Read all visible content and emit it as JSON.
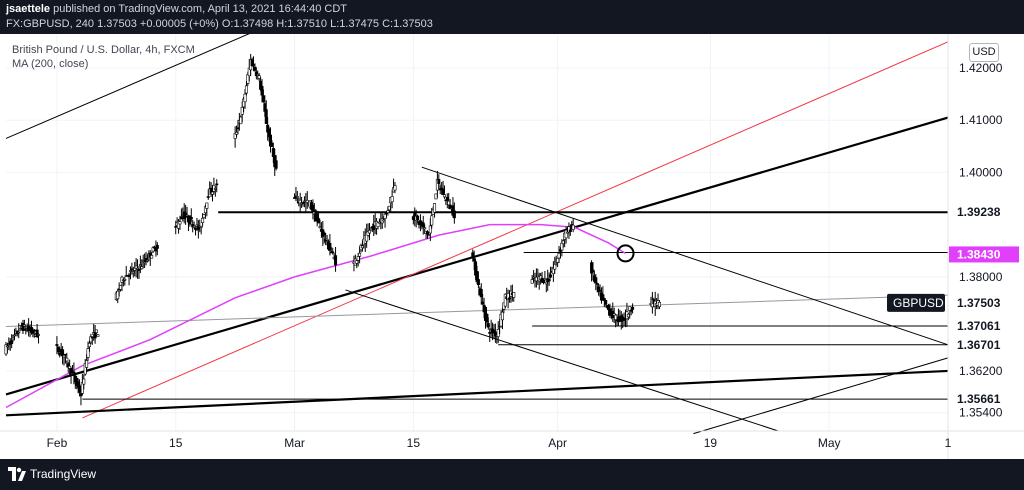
{
  "header": {
    "author": "jsaettele",
    "published": " published on TradingView.com, April 13, 2021 16:44:40 CDT",
    "ohlc_line": "FX:GBPUSD, 240  1.37503  +0.00005 (+0%)  O:1.37498  H:1.37510  L:1.37475  C:1.37503"
  },
  "legend": {
    "title": "British Pound / U.S. Dollar, 4h, FXCM",
    "indicator": "MA (200, close)"
  },
  "currency_button": "USD",
  "footer": {
    "brand": "TradingView"
  },
  "colors": {
    "bar_dark": "#131722",
    "grid": "#f0f3fa",
    "candle": "#000000",
    "ma": "#e040fb",
    "trend_red": "#f23645",
    "line_gray": "#9598a1",
    "trend_black": "#000000"
  },
  "chart_data": {
    "type": "candlestick",
    "symbol": "GBPUSD",
    "timeframe": "4h",
    "ylim": [
      1.3505,
      1.4265
    ],
    "x_ticks": [
      {
        "label": "Feb",
        "date": "2021-02-01"
      },
      {
        "label": "15",
        "date": "2021-02-15"
      },
      {
        "label": "Mar",
        "date": "2021-03-01"
      },
      {
        "label": "15",
        "date": "2021-03-15"
      },
      {
        "label": "Apr",
        "date": "2021-04-01"
      },
      {
        "label": "19",
        "date": "2021-04-19"
      },
      {
        "label": "May",
        "date": "2021-05-03"
      },
      {
        "label": "1",
        "date": "2021-05-17"
      }
    ],
    "y_ticks": [
      1.42,
      1.41,
      1.4,
      1.38,
      1.362,
      1.354
    ],
    "y_tick_labels": [
      "1.42000",
      "1.41000",
      "1.40000",
      "1.38000",
      "1.36200",
      "1.35400"
    ],
    "last_price": 1.37503,
    "price_path": [
      [
        "2021-01-26",
        1.366
      ],
      [
        "2021-01-28",
        1.3705
      ],
      [
        "2021-01-31",
        1.368
      ],
      [
        "2021-02-02",
        1.365
      ],
      [
        "2021-02-04",
        1.3575
      ],
      [
        "2021-02-05",
        1.368
      ],
      [
        "2021-02-07",
        1.371
      ],
      [
        "2021-02-09",
        1.38
      ],
      [
        "2021-02-11",
        1.382
      ],
      [
        "2021-02-13",
        1.386
      ],
      [
        "2021-02-15",
        1.389
      ],
      [
        "2021-02-16",
        1.392
      ],
      [
        "2021-02-18",
        1.389
      ],
      [
        "2021-02-19",
        1.396
      ],
      [
        "2021-02-21",
        1.399
      ],
      [
        "2021-02-22",
        1.406
      ],
      [
        "2021-02-23",
        1.412
      ],
      [
        "2021-02-24",
        1.4215
      ],
      [
        "2021-02-25",
        1.418
      ],
      [
        "2021-02-26",
        1.408
      ],
      [
        "2021-02-28",
        1.393
      ],
      [
        "2021-03-01",
        1.395
      ],
      [
        "2021-03-03",
        1.394
      ],
      [
        "2021-03-04",
        1.39
      ],
      [
        "2021-03-06",
        1.383
      ],
      [
        "2021-03-08",
        1.382
      ],
      [
        "2021-03-10",
        1.389
      ],
      [
        "2021-03-12",
        1.392
      ],
      [
        "2021-03-13",
        1.398
      ],
      [
        "2021-03-15",
        1.392
      ],
      [
        "2021-03-17",
        1.388
      ],
      [
        "2021-03-18",
        1.398
      ],
      [
        "2021-03-20",
        1.392
      ],
      [
        "2021-03-22",
        1.385
      ],
      [
        "2021-03-23",
        1.377
      ],
      [
        "2021-03-24",
        1.37
      ],
      [
        "2021-03-25",
        1.369
      ],
      [
        "2021-03-26",
        1.376
      ],
      [
        "2021-03-28",
        1.378
      ],
      [
        "2021-03-30",
        1.38
      ],
      [
        "2021-03-31",
        1.379
      ],
      [
        "2021-04-01",
        1.383
      ],
      [
        "2021-04-02",
        1.388
      ],
      [
        "2021-04-03",
        1.39
      ],
      [
        "2021-04-04",
        1.386
      ],
      [
        "2021-04-05",
        1.382
      ],
      [
        "2021-04-06",
        1.377
      ],
      [
        "2021-04-07",
        1.374
      ],
      [
        "2021-04-08",
        1.372
      ],
      [
        "2021-04-09",
        1.372
      ],
      [
        "2021-04-10",
        1.3745
      ],
      [
        "2021-04-11",
        1.3735
      ],
      [
        "2021-04-12",
        1.375
      ],
      [
        "2021-04-13",
        1.375
      ]
    ],
    "ma200": [
      [
        "2021-01-26",
        1.355
      ],
      [
        "2021-02-04",
        1.363
      ],
      [
        "2021-02-12",
        1.368
      ],
      [
        "2021-02-22",
        1.376
      ],
      [
        "2021-03-01",
        1.38
      ],
      [
        "2021-03-10",
        1.384
      ],
      [
        "2021-03-18",
        1.388
      ],
      [
        "2021-03-24",
        1.39
      ],
      [
        "2021-03-30",
        1.39
      ],
      [
        "2021-04-03",
        1.3895
      ],
      [
        "2021-04-07",
        1.3865
      ],
      [
        "2021-04-09",
        1.3845
      ]
    ],
    "horizontal_levels": [
      {
        "price": 1.39238,
        "label": "1.39238",
        "from": "2021-02-20"
      },
      {
        "price": 1.38466,
        "label": "1.38466",
        "from": "2021-03-28"
      },
      {
        "price": 1.37061,
        "label": "1.37061",
        "from": "2021-03-29"
      },
      {
        "price": 1.36701,
        "label": "1.36701",
        "from": "2021-03-25"
      },
      {
        "price": 1.35661,
        "label": "1.35661",
        "from": "2021-02-04"
      }
    ],
    "ma_label": {
      "price": 1.3843,
      "label": "1.38430"
    },
    "symbol_label": {
      "price": 1.37503,
      "label": "GBPUSD",
      "value": "1.37503"
    },
    "trendlines": [
      {
        "style": "black-thin",
        "from": [
          "2021-01-26",
          1.4065
        ],
        "to": [
          "2021-03-02",
          1.431
        ]
      },
      {
        "style": "black-thick",
        "from": [
          "2021-01-26",
          1.3575
        ],
        "to": [
          "2021-05-17",
          1.4105
        ]
      },
      {
        "style": "red",
        "from": [
          "2021-02-04",
          1.353
        ],
        "to": [
          "2021-05-17",
          1.425
        ]
      },
      {
        "style": "black-thick",
        "from": [
          "2021-01-26",
          1.3535
        ],
        "to": [
          "2021-05-17",
          1.362
        ]
      },
      {
        "style": "gray",
        "from": [
          "2021-01-26",
          1.3705
        ],
        "to": [
          "2021-05-17",
          1.3765
        ]
      },
      {
        "style": "black-thin",
        "from": [
          "2021-03-16",
          1.401
        ],
        "to": [
          "2021-05-17",
          1.367
        ]
      },
      {
        "style": "black-thin",
        "from": [
          "2021-03-07",
          1.3775
        ],
        "to": [
          "2021-04-27",
          1.3505
        ]
      },
      {
        "style": "black-thin",
        "from": [
          "2021-04-17",
          1.35
        ],
        "to": [
          "2021-05-17",
          1.3645
        ]
      }
    ],
    "circle_marker": {
      "date": "2021-04-09",
      "price": 1.3845
    }
  }
}
